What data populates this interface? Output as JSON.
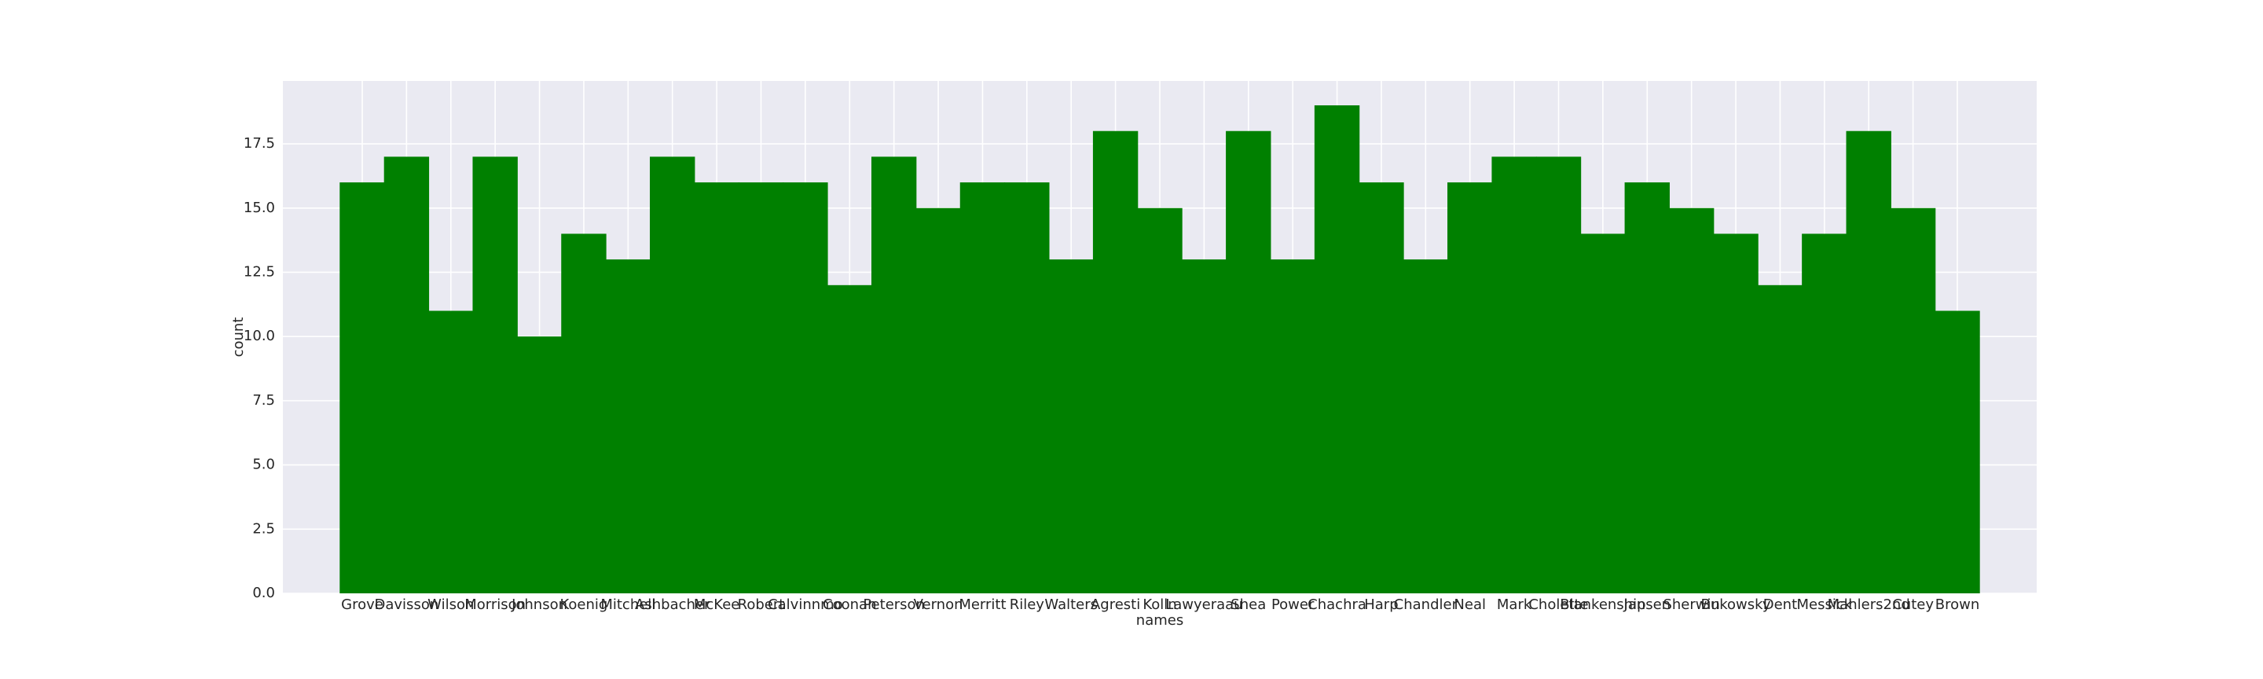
{
  "chart_data": {
    "type": "bar",
    "x_label": "names",
    "y_label": "count",
    "categories": [
      "Grove",
      "Davisson",
      "Wilson",
      "Morrison",
      "Johnson",
      "Koenig",
      "Mitchell",
      "Ashbacher",
      "McKee",
      "Robert",
      "Calvinnmo",
      "Coonan",
      "Peterson",
      "Vernon",
      "Merritt",
      "Riley",
      "Walters",
      "Agresti",
      "Kolln",
      "Lawyeraau",
      "Shea",
      "Power",
      "Chachra",
      "Harp",
      "Chandler",
      "Neal",
      "Mark",
      "Cholette",
      "Blankenship",
      "Jansen",
      "Sherwin",
      "Bukowsky",
      "Dent",
      "Messick",
      "Mahlers2nd",
      "Cutey",
      "Brown"
    ],
    "values": [
      16,
      17,
      11,
      17,
      10,
      14,
      13,
      17,
      16,
      16,
      16,
      12,
      17,
      15,
      16,
      16,
      13,
      18,
      15,
      13,
      18,
      13,
      19,
      16,
      13,
      16,
      17,
      17,
      14,
      16,
      15,
      14,
      12,
      14,
      18,
      15,
      11
    ],
    "color": "#008000",
    "ylim": [
      0,
      19.95
    ],
    "yticks": [
      {
        "value": 0,
        "label": "0.0"
      },
      2.5,
      {
        "value": 5,
        "label": "5.0"
      },
      7.5,
      {
        "value": 10,
        "label": "10.0"
      },
      12.5,
      {
        "value": 15,
        "label": "15.0"
      },
      17.5
    ],
    "grid": true
  }
}
